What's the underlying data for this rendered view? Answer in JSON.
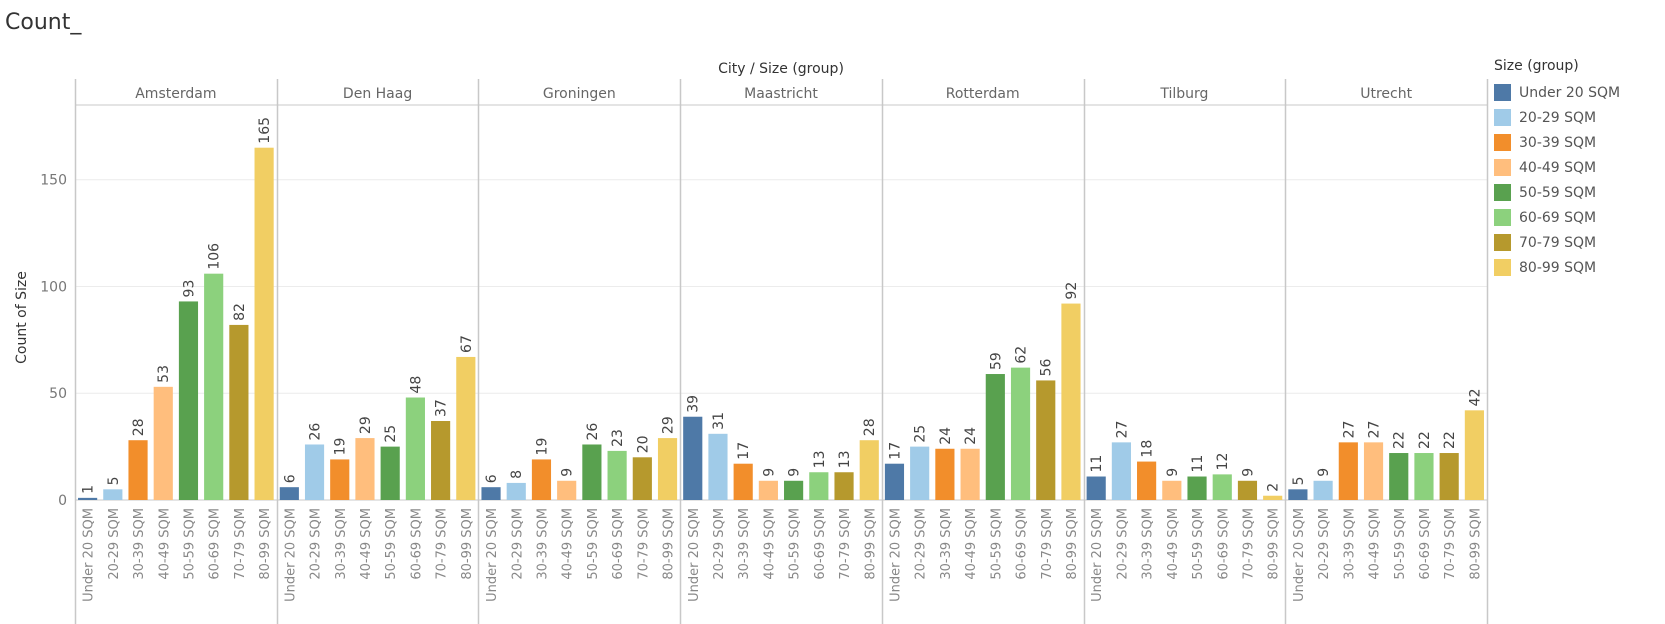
{
  "sheet_title": "Count_",
  "chart_data": {
    "type": "bar",
    "title": "",
    "column_header": "City / Size (group)",
    "ylabel": "Count of Size",
    "ylim": [
      0,
      185
    ],
    "yticks": [
      0,
      50,
      100,
      150
    ],
    "grid": true,
    "legend_title": "Size (group)",
    "legend_position": "right",
    "categories": [
      "Under 20 SQM",
      "20-29 SQM",
      "30-39 SQM",
      "40-49 SQM",
      "50-59 SQM",
      "60-69 SQM",
      "70-79 SQM",
      "80-99 SQM"
    ],
    "colors": [
      "#4e79a7",
      "#a0cbe8",
      "#f28e2b",
      "#ffbe7d",
      "#59a14f",
      "#8cd17d",
      "#b6992d",
      "#f1ce63"
    ],
    "panels": [
      {
        "name": "Amsterdam",
        "values": [
          1,
          5,
          28,
          53,
          93,
          106,
          82,
          165
        ]
      },
      {
        "name": "Den Haag",
        "values": [
          6,
          26,
          19,
          29,
          25,
          48,
          37,
          67
        ]
      },
      {
        "name": "Groningen",
        "values": [
          6,
          8,
          19,
          9,
          26,
          23,
          20,
          29
        ]
      },
      {
        "name": "Maastricht",
        "values": [
          39,
          31,
          17,
          9,
          9,
          13,
          13,
          28
        ]
      },
      {
        "name": "Rotterdam",
        "values": [
          17,
          25,
          24,
          24,
          59,
          62,
          56,
          92
        ]
      },
      {
        "name": "Tilburg",
        "values": [
          11,
          27,
          18,
          9,
          11,
          12,
          9,
          2
        ]
      },
      {
        "name": "Utrecht",
        "values": [
          5,
          9,
          27,
          27,
          22,
          22,
          22,
          42
        ]
      }
    ]
  }
}
